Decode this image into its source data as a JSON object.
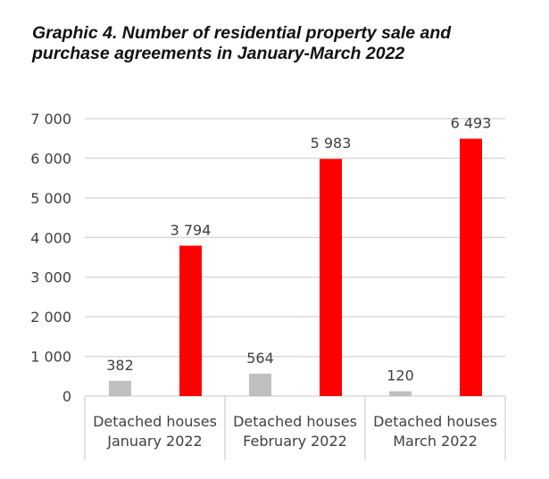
{
  "chart_data": {
    "type": "bar",
    "title": "Graphic 4. Number of residential property sale and purchase agreements in January-March 2022",
    "categories": [
      [
        "Detached houses",
        "January 2022"
      ],
      [
        "Detached houses",
        "February 2022"
      ],
      [
        "Detached houses",
        "March 2022"
      ]
    ],
    "series": [
      {
        "name": "Detached houses",
        "color": "#bfbfbf",
        "values": [
          382,
          564,
          120
        ],
        "labels": [
          "382",
          "564",
          "120"
        ]
      },
      {
        "name": "",
        "color": "#ff0000",
        "values": [
          3794,
          5983,
          6493
        ],
        "labels": [
          "3 794",
          "5 983",
          "6 493"
        ]
      }
    ],
    "yticks": [
      0,
      1000,
      2000,
      3000,
      4000,
      5000,
      6000,
      7000
    ],
    "ytick_labels": [
      "0",
      "1 000",
      "2 000",
      "3 000",
      "4 000",
      "5 000",
      "6 000",
      "7 000"
    ],
    "ylim": [
      0,
      7000
    ],
    "grid": true,
    "xlabel": "",
    "ylabel": ""
  }
}
